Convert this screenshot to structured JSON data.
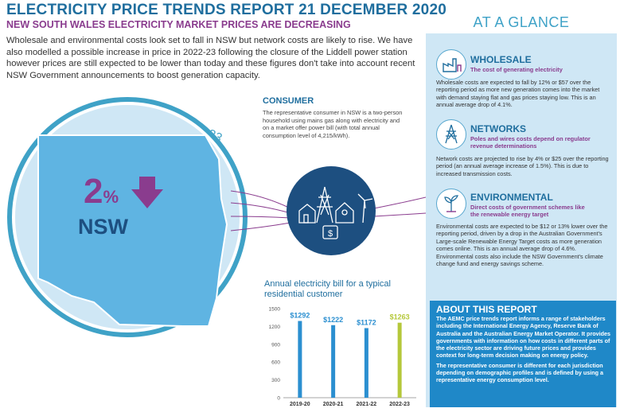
{
  "header": {
    "title": "ELECTRICITY PRICE TRENDS REPORT 21 DECEMBER 2020",
    "subtitle": "NEW SOUTH WALES ELECTRICITY MARKET PRICES ARE DECREASING",
    "intro": "Wholesale and environmental costs look set to fall in NSW but network costs are likely to rise. We have also modelled a possible increase in price in 2022-23 following the closure of the Liddell power station however prices are still expected to be lower than today and these figures don't take into account recent NSW Government announcements to boost generation capacity."
  },
  "map": {
    "arc_text": "Market offer prices estimated to fall FY20-23",
    "percent_number": "2",
    "percent_sign": "%",
    "state": "NSW"
  },
  "consumer": {
    "heading": "CONSUMER",
    "text": "The representative consumer in NSW is a two-person household using mains gas along with electricity and on a market offer power bill (with total annual consumption level of 4,215/kWh)."
  },
  "glance": {
    "heading": "AT A GLANCE",
    "sections": [
      {
        "heading": "WHOLESALE",
        "sub": "The cost of generating electricity",
        "body": "Wholesale costs are expected to fall by 12% or $57 over the reporting period as more new generation comes into the market with demand staying flat and gas prices staying low. This is an annual average drop of 4.1%.",
        "icon": "factory-icon"
      },
      {
        "heading": "NETWORKS",
        "sub": "Poles and wires costs depend on regulator revenue determinations",
        "body": "Network costs are projected to rise by 4% or $25 over the reporting period (an annual average increase of 1.5%). This is due to increased transmission costs.",
        "icon": "pylon-icon"
      },
      {
        "heading": "ENVIRONMENTAL",
        "sub": "Direct costs of government schemes like the renewable energy target",
        "body": "Environmental costs are expected to be $12 or 13% lower over the reporting period, driven by a drop in the Australian Government's Large-scale Renewable Energy Target costs as more generation comes online. This is an annual average drop of 4.6%. Environmental costs also include the NSW Government's climate change fund and energy savings scheme.",
        "icon": "plant-icon"
      }
    ]
  },
  "about": {
    "heading": "ABOUT THIS REPORT",
    "p1": "The AEMC price trends report informs a range of stakeholders including the International Energy Agency, Reserve Bank of Australia and the Australian Energy Market Operator. It provides governments with information on how costs in different parts of the electricity sector are driving future prices and provides context for long-term decision making on energy policy.",
    "p2": "The representative consumer is different for each jurisdiction depending on demographic profiles and is defined by using a representative energy consumption level."
  },
  "chart_data": {
    "type": "bar",
    "title": "Annual electricity bill for a typical residential customer",
    "categories": [
      "2019-20",
      "2020-21",
      "2021-22",
      "2022-23"
    ],
    "values": [
      1292,
      1222,
      1172,
      1263
    ],
    "value_labels": [
      "$1292",
      "$1222",
      "$1172",
      "$1263"
    ],
    "yticks": [
      0,
      300,
      600,
      900,
      1200,
      1500
    ],
    "ylim": [
      0,
      1500
    ],
    "colors": [
      "#2b8fd0",
      "#2b8fd0",
      "#2b8fd0",
      "#b5c83a"
    ],
    "grid": false
  },
  "colors": {
    "blue": "#1f6e9e",
    "purple": "#8a3c8e",
    "light_blue": "#cfe7f5",
    "navy": "#1d4f80"
  }
}
